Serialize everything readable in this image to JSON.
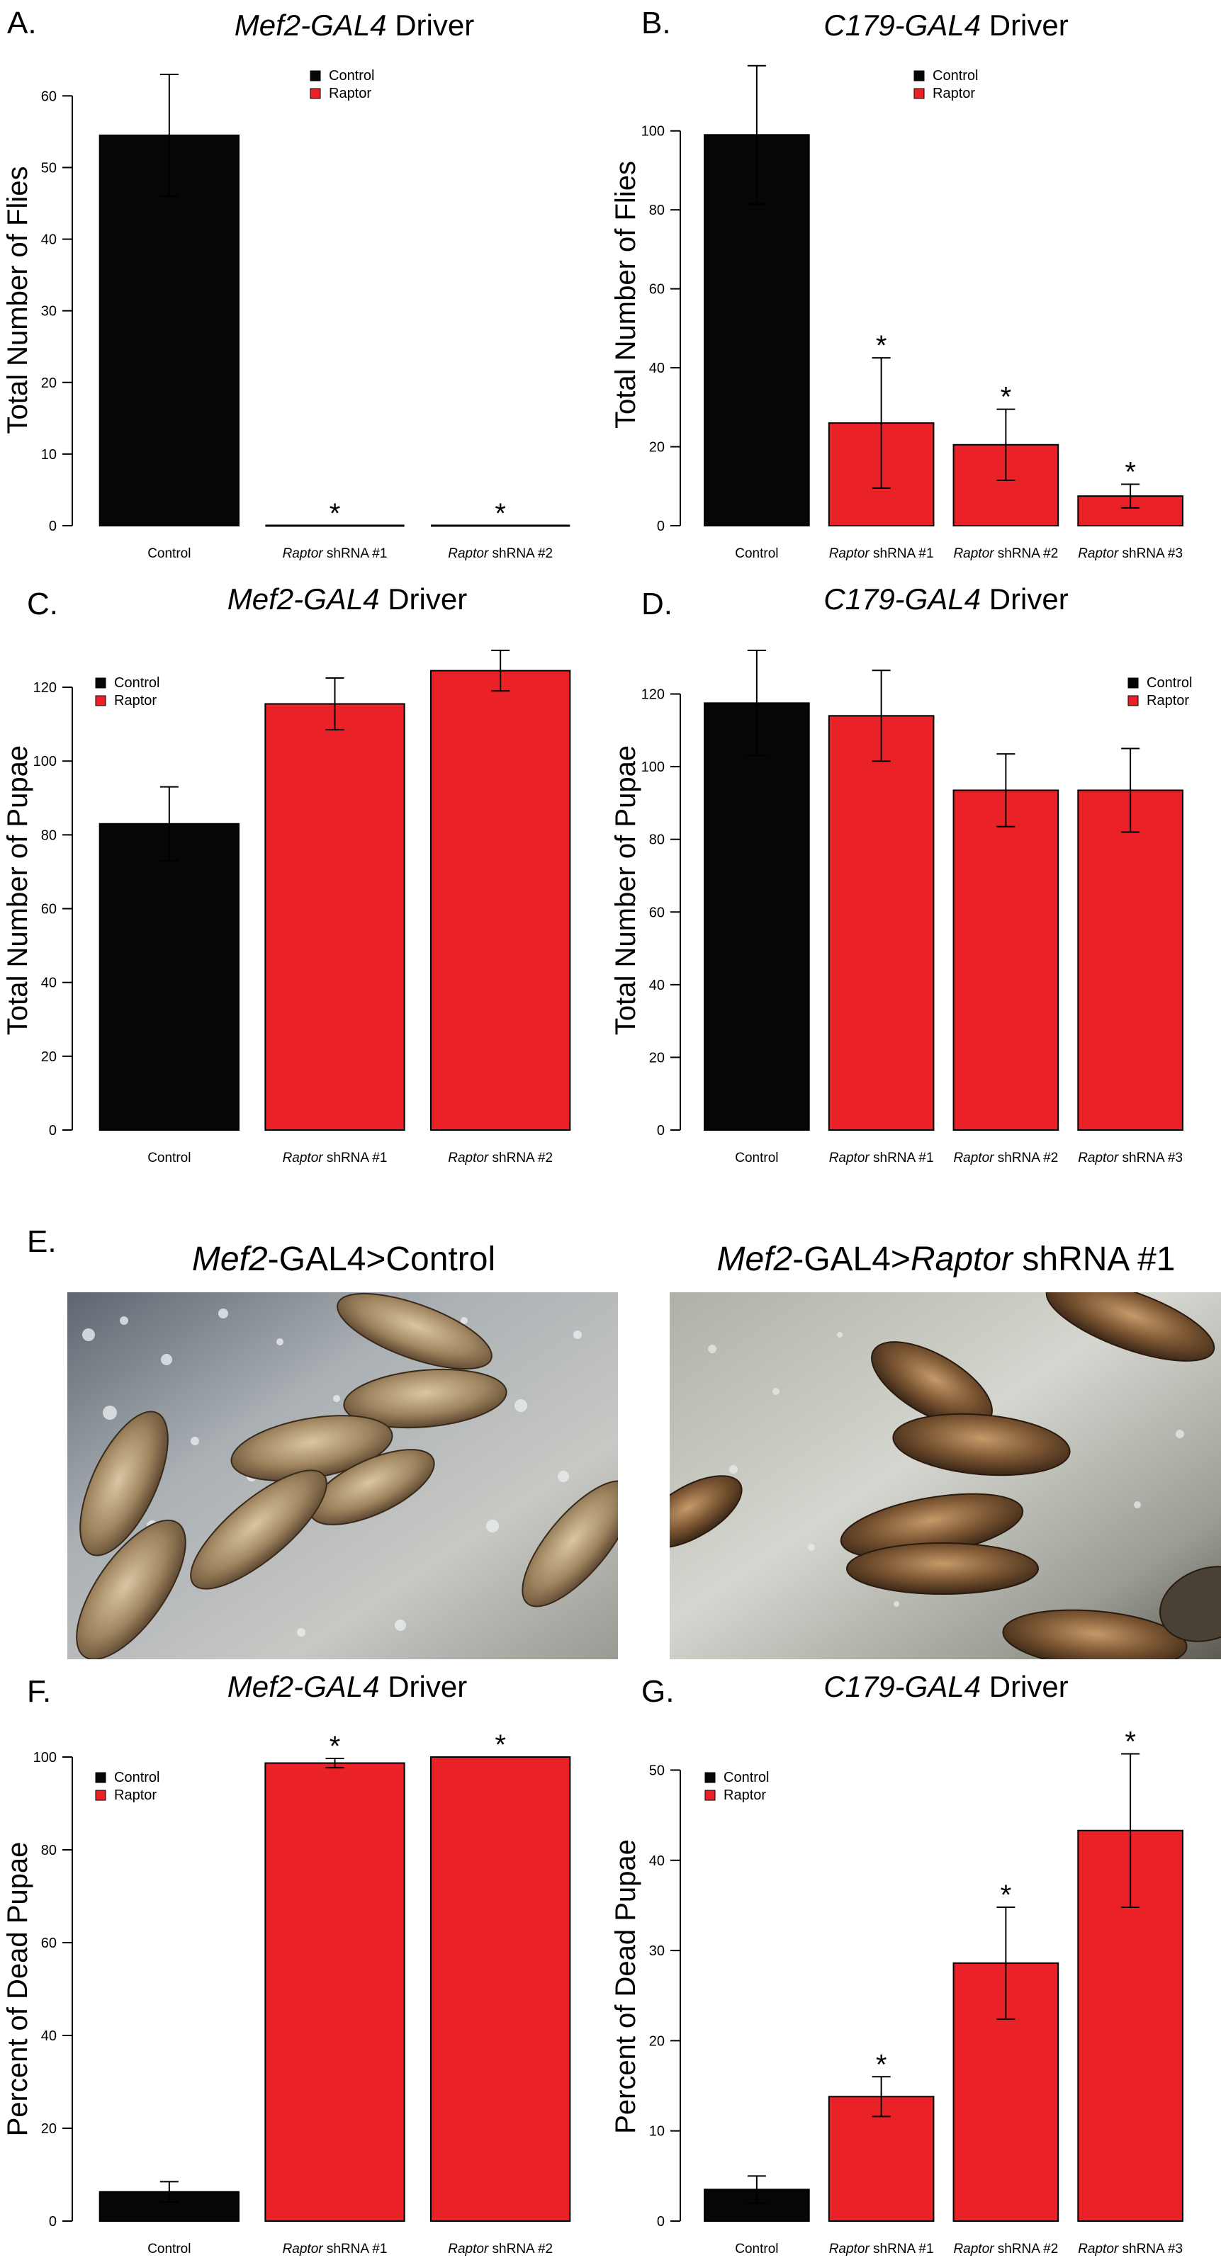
{
  "colors": {
    "control": "#060606",
    "raptor": "#ea2227",
    "axis": "#000000"
  },
  "chart_data": [
    {
      "id": "A",
      "label": "A.",
      "type": "bar",
      "title_italic": "Mef2-GAL4",
      "title_plain": " Driver",
      "ylabel": "Total Number of Flies",
      "ylim": [
        0,
        63
      ],
      "yticks": [
        0,
        10,
        20,
        30,
        40,
        50,
        60
      ],
      "legend": {
        "placement": "top-center",
        "entries": [
          "Control",
          "Raptor"
        ]
      },
      "categories": [
        {
          "italic": "",
          "plain": "Control"
        },
        {
          "italic": "Raptor",
          "plain": " shRNA #1"
        },
        {
          "italic": "Raptor",
          "plain": " shRNA #2"
        }
      ],
      "values": [
        54.5,
        0,
        0
      ],
      "errors": [
        8.5,
        0,
        0
      ],
      "groups": [
        "control",
        "raptor",
        "raptor"
      ],
      "significant": [
        false,
        true,
        true
      ]
    },
    {
      "id": "B",
      "label": "B.",
      "type": "bar",
      "title_italic": "C179-GAL4",
      "title_plain": " Driver",
      "ylabel": "Total Number of Flies",
      "ylim": [
        0,
        117
      ],
      "yticks": [
        0,
        20,
        40,
        60,
        80,
        100
      ],
      "legend": {
        "placement": "top-center",
        "entries": [
          "Control",
          "Raptor"
        ]
      },
      "categories": [
        {
          "italic": "",
          "plain": "Control"
        },
        {
          "italic": "Raptor",
          "plain": " shRNA #1"
        },
        {
          "italic": "Raptor",
          "plain": " shRNA #2"
        },
        {
          "italic": "Raptor",
          "plain": " shRNA #3"
        }
      ],
      "values": [
        99,
        26,
        20.5,
        7.5
      ],
      "errors": [
        17.5,
        16.5,
        9,
        3
      ],
      "groups": [
        "control",
        "raptor",
        "raptor",
        "raptor"
      ],
      "significant": [
        false,
        true,
        true,
        true
      ]
    },
    {
      "id": "C",
      "label": "C.",
      "type": "bar",
      "title_italic": "Mef2-GAL4",
      "title_plain": " Driver",
      "ylabel": "Total Number of Pupae",
      "ylim": [
        0,
        130
      ],
      "yticks": [
        0,
        20,
        40,
        60,
        80,
        100,
        120
      ],
      "legend": {
        "placement": "top-left",
        "entries": [
          "Control",
          "Raptor"
        ]
      },
      "categories": [
        {
          "italic": "",
          "plain": "Control"
        },
        {
          "italic": "Raptor",
          "plain": " shRNA #1"
        },
        {
          "italic": "Raptor",
          "plain": " shRNA #2"
        }
      ],
      "values": [
        83,
        115.5,
        124.5
      ],
      "errors": [
        10,
        7,
        5.5
      ],
      "groups": [
        "control",
        "raptor",
        "raptor"
      ],
      "significant": [
        false,
        false,
        false
      ]
    },
    {
      "id": "D",
      "label": "D.",
      "type": "bar",
      "title_italic": "C179-GAL4",
      "title_plain": " Driver",
      "ylabel": "Total Number of Pupae",
      "ylim": [
        0,
        132
      ],
      "yticks": [
        0,
        20,
        40,
        60,
        80,
        100,
        120
      ],
      "legend": {
        "placement": "top-right",
        "entries": [
          "Control",
          "Raptor"
        ]
      },
      "categories": [
        {
          "italic": "",
          "plain": "Control"
        },
        {
          "italic": "Raptor",
          "plain": " shRNA #1"
        },
        {
          "italic": "Raptor",
          "plain": " shRNA #2"
        },
        {
          "italic": "Raptor",
          "plain": " shRNA #3"
        }
      ],
      "values": [
        117.5,
        114,
        93.5,
        93.5
      ],
      "errors": [
        14.5,
        12.5,
        10,
        11.5
      ],
      "groups": [
        "control",
        "raptor",
        "raptor",
        "raptor"
      ],
      "significant": [
        false,
        false,
        false,
        false
      ]
    },
    {
      "id": "F",
      "label": "F.",
      "type": "bar",
      "title_italic": "Mef2-GAL4",
      "title_plain": " Driver",
      "ylabel": "Percent of Dead Pupae",
      "ylim": [
        0,
        100
      ],
      "yticks": [
        0,
        20,
        40,
        60,
        80,
        100
      ],
      "legend": {
        "placement": "top-left",
        "entries": [
          "Control",
          "Raptor"
        ]
      },
      "categories": [
        {
          "italic": "",
          "plain": "Control"
        },
        {
          "italic": "Raptor",
          "plain": " shRNA #1"
        },
        {
          "italic": "Raptor",
          "plain": " shRNA #2"
        }
      ],
      "values": [
        6.3,
        98.7,
        100
      ],
      "errors": [
        2.2,
        1,
        0
      ],
      "groups": [
        "control",
        "raptor",
        "raptor"
      ],
      "significant": [
        false,
        true,
        true
      ]
    },
    {
      "id": "G",
      "label": "G.",
      "type": "bar",
      "title_italic": "C179-GAL4",
      "title_plain": " Driver",
      "ylabel": "Percent of Dead Pupae",
      "ylim": [
        0,
        52
      ],
      "yticks": [
        0,
        10,
        20,
        30,
        40,
        50
      ],
      "legend": {
        "placement": "top-left",
        "entries": [
          "Control",
          "Raptor"
        ]
      },
      "categories": [
        {
          "italic": "",
          "plain": "Control"
        },
        {
          "italic": "Raptor",
          "plain": " shRNA #1"
        },
        {
          "italic": "Raptor",
          "plain": " shRNA #2"
        },
        {
          "italic": "Raptor",
          "plain": " shRNA #3"
        }
      ],
      "values": [
        3.5,
        13.8,
        28.6,
        43.3
      ],
      "errors": [
        1.5,
        2.2,
        6.2,
        8.5
      ],
      "groups": [
        "control",
        "raptor",
        "raptor",
        "raptor"
      ],
      "significant": [
        false,
        true,
        true,
        true
      ]
    }
  ],
  "significance_marker": "*",
  "photos": {
    "label": "E.",
    "left": {
      "italic": "Mef2",
      "plain": "-GAL4>Control"
    },
    "right": {
      "italic1": "Mef2",
      "plain1": "-GAL4>",
      "italic2": "Raptor",
      "plain2": " shRNA #1"
    }
  }
}
